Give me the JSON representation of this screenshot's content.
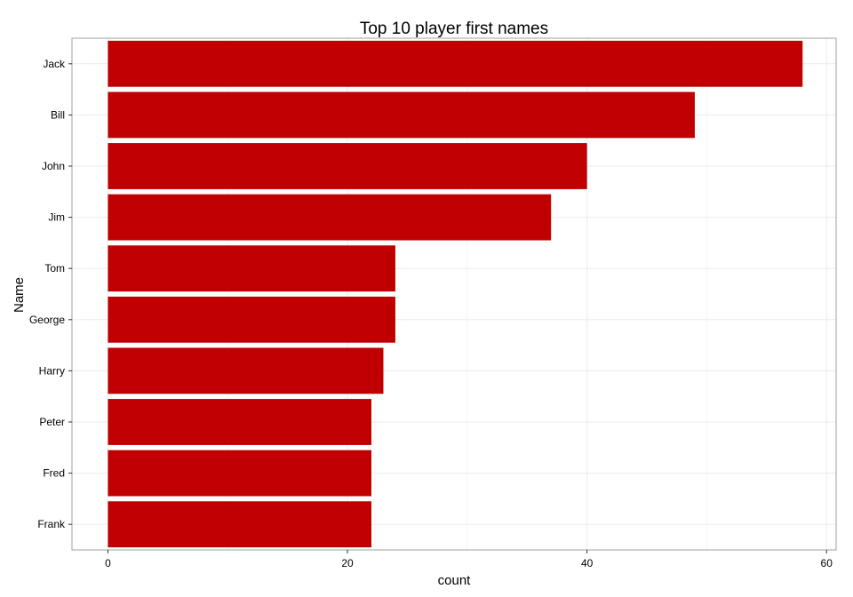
{
  "chart_data": {
    "type": "bar",
    "orientation": "horizontal",
    "title": "Top 10 player first names",
    "xlabel": "count",
    "ylabel": "Name",
    "categories": [
      "Jack",
      "Bill",
      "John",
      "Jim",
      "Tom",
      "George",
      "Harry",
      "Peter",
      "Fred",
      "Frank"
    ],
    "values": [
      58,
      49,
      40,
      37,
      24,
      24,
      23,
      22,
      22,
      22
    ],
    "xlim": [
      -3,
      60.8
    ],
    "xticks": [
      0,
      20,
      40,
      60
    ],
    "grid": true,
    "bar_color": "#c00000",
    "gridline_color": "#ebebeb",
    "panel_border_color": "#a0a0a0"
  }
}
